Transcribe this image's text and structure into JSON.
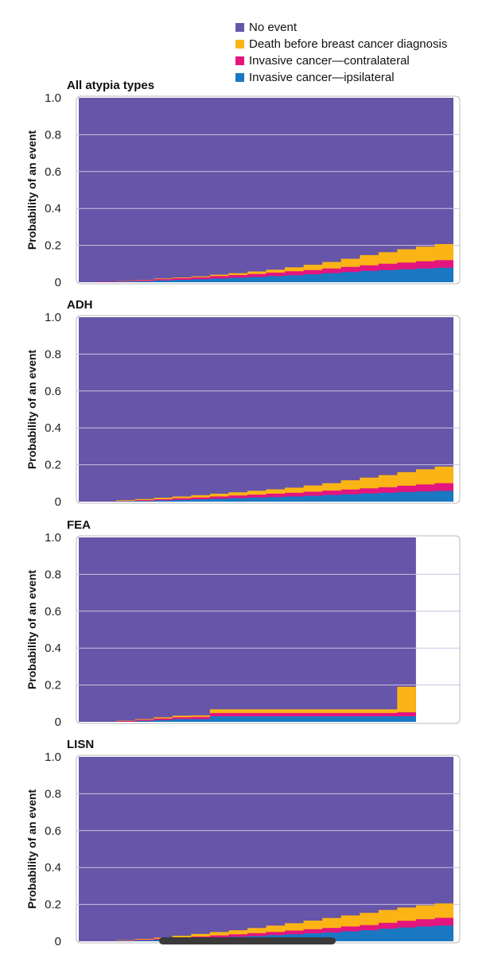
{
  "legend": {
    "items": [
      {
        "label": "No event",
        "color": "#6655a8"
      },
      {
        "label": "Death before breast cancer diagnosis",
        "color": "#fbb416"
      },
      {
        "label": "Invasive cancer—contralateral",
        "color": "#e3157f"
      },
      {
        "label": "Invasive cancer—ipsilateral",
        "color": "#1a78c2"
      }
    ]
  },
  "chart_data": [
    {
      "type": "area",
      "stacked": true,
      "title": "All atypia types",
      "ylabel": "Probability of an event",
      "ylim": [
        0,
        1
      ],
      "yticks": [
        "0",
        "0.2",
        "0.4",
        "0.6",
        "0.8",
        "1.0"
      ],
      "grid": true,
      "x": [
        0,
        1,
        2,
        3,
        4,
        5,
        6,
        7,
        8,
        9,
        10,
        11,
        12,
        13,
        14,
        15,
        16,
        17,
        18,
        19,
        20
      ],
      "x_end": 20,
      "series": [
        {
          "name": "Invasive cancer—ipsilateral",
          "color": "#1a78c2",
          "values": [
            0,
            0,
            0.003,
            0.006,
            0.01,
            0.013,
            0.016,
            0.02,
            0.024,
            0.028,
            0.033,
            0.038,
            0.043,
            0.049,
            0.055,
            0.061,
            0.066,
            0.07,
            0.074,
            0.078,
            0.083
          ]
        },
        {
          "name": "Invasive cancer—contralateral",
          "color": "#e3157f",
          "values": [
            0,
            0.002,
            0.003,
            0.005,
            0.007,
            0.009,
            0.011,
            0.013,
            0.015,
            0.017,
            0.019,
            0.021,
            0.023,
            0.025,
            0.028,
            0.031,
            0.034,
            0.037,
            0.04,
            0.042,
            0.045
          ]
        },
        {
          "name": "Death before breast cancer diagnosis",
          "color": "#fbb416",
          "values": [
            0,
            0,
            0.001,
            0.002,
            0.003,
            0.004,
            0.005,
            0.008,
            0.01,
            0.013,
            0.016,
            0.022,
            0.029,
            0.036,
            0.044,
            0.055,
            0.063,
            0.072,
            0.079,
            0.087,
            0.104
          ]
        }
      ]
    },
    {
      "type": "area",
      "stacked": true,
      "title": "ADH",
      "ylabel": "Probability of an event",
      "ylim": [
        0,
        1
      ],
      "yticks": [
        "0",
        "0.2",
        "0.4",
        "0.6",
        "0.8",
        "1.0"
      ],
      "grid": true,
      "x": [
        0,
        1,
        2,
        3,
        4,
        5,
        6,
        7,
        8,
        9,
        10,
        11,
        12,
        13,
        14,
        15,
        16,
        17,
        18,
        19,
        20
      ],
      "x_end": 20,
      "series": [
        {
          "name": "Invasive cancer—ipsilateral",
          "color": "#1a78c2",
          "values": [
            0,
            0,
            0.002,
            0.004,
            0.007,
            0.01,
            0.013,
            0.016,
            0.019,
            0.022,
            0.025,
            0.028,
            0.032,
            0.036,
            0.04,
            0.044,
            0.048,
            0.052,
            0.055,
            0.058,
            0.062
          ]
        },
        {
          "name": "Invasive cancer—contralateral",
          "color": "#e3157f",
          "values": [
            0,
            0,
            0.002,
            0.004,
            0.006,
            0.008,
            0.01,
            0.012,
            0.014,
            0.016,
            0.018,
            0.02,
            0.022,
            0.024,
            0.026,
            0.028,
            0.03,
            0.034,
            0.038,
            0.042,
            0.048
          ]
        },
        {
          "name": "Death before breast cancer diagnosis",
          "color": "#fbb416",
          "values": [
            0,
            0,
            0.004,
            0.006,
            0.008,
            0.01,
            0.012,
            0.015,
            0.018,
            0.021,
            0.024,
            0.028,
            0.034,
            0.04,
            0.05,
            0.058,
            0.066,
            0.074,
            0.083,
            0.09,
            0.138
          ]
        }
      ]
    },
    {
      "type": "area",
      "stacked": true,
      "title": "FEA",
      "ylabel": "Probability of an event",
      "ylim": [
        0,
        1
      ],
      "yticks": [
        "0",
        "0.2",
        "0.4",
        "0.6",
        "0.8",
        "1.0"
      ],
      "grid": true,
      "x": [
        0,
        1,
        2,
        3,
        4,
        5,
        6,
        7,
        8,
        9,
        10,
        11,
        12,
        13,
        14,
        15,
        16,
        17,
        18
      ],
      "x_end": 18,
      "series": [
        {
          "name": "Invasive cancer—ipsilateral",
          "color": "#1a78c2",
          "values": [
            0,
            0,
            0,
            0.005,
            0.01,
            0.015,
            0.015,
            0.03,
            0.03,
            0.03,
            0.03,
            0.03,
            0.03,
            0.03,
            0.03,
            0.03,
            0.03,
            0.03,
            0.03
          ]
        },
        {
          "name": "Invasive cancer—contralateral",
          "color": "#e3157f",
          "values": [
            0,
            0,
            0.004,
            0.006,
            0.008,
            0.01,
            0.012,
            0.018,
            0.018,
            0.018,
            0.018,
            0.018,
            0.018,
            0.018,
            0.018,
            0.018,
            0.018,
            0.022,
            0.022
          ]
        },
        {
          "name": "Death before breast cancer diagnosis",
          "color": "#fbb416",
          "values": [
            0,
            0,
            0.002,
            0.004,
            0.007,
            0.008,
            0.008,
            0.02,
            0.02,
            0.02,
            0.02,
            0.02,
            0.02,
            0.02,
            0.02,
            0.02,
            0.02,
            0.138,
            0.138
          ]
        }
      ]
    },
    {
      "type": "area",
      "stacked": true,
      "title": "LISN",
      "ylabel": "Probability of an event",
      "ylim": [
        0,
        1
      ],
      "yticks": [
        "0",
        "0.2",
        "0.4",
        "0.6",
        "0.8",
        "1.0"
      ],
      "grid": true,
      "x": [
        0,
        1,
        2,
        3,
        4,
        5,
        6,
        7,
        8,
        9,
        10,
        11,
        12,
        13,
        14,
        15,
        16,
        17,
        18,
        19,
        20
      ],
      "x_end": 20,
      "series": [
        {
          "name": "Invasive cancer—ipsilateral",
          "color": "#1a78c2",
          "values": [
            0,
            0,
            0.002,
            0.005,
            0.008,
            0.012,
            0.016,
            0.02,
            0.024,
            0.028,
            0.033,
            0.038,
            0.043,
            0.048,
            0.054,
            0.06,
            0.068,
            0.075,
            0.08,
            0.085,
            0.09
          ]
        },
        {
          "name": "Invasive cancer—contralateral",
          "color": "#e3157f",
          "values": [
            0,
            0,
            0.002,
            0.004,
            0.006,
            0.008,
            0.01,
            0.012,
            0.014,
            0.016,
            0.018,
            0.02,
            0.022,
            0.024,
            0.026,
            0.028,
            0.032,
            0.036,
            0.04,
            0.042,
            0.045
          ]
        },
        {
          "name": "Death before breast cancer diagnosis",
          "color": "#fbb416",
          "values": [
            0,
            0,
            0.002,
            0.004,
            0.006,
            0.01,
            0.014,
            0.018,
            0.022,
            0.028,
            0.034,
            0.04,
            0.047,
            0.054,
            0.06,
            0.066,
            0.07,
            0.072,
            0.075,
            0.078,
            0.08
          ]
        }
      ]
    }
  ]
}
